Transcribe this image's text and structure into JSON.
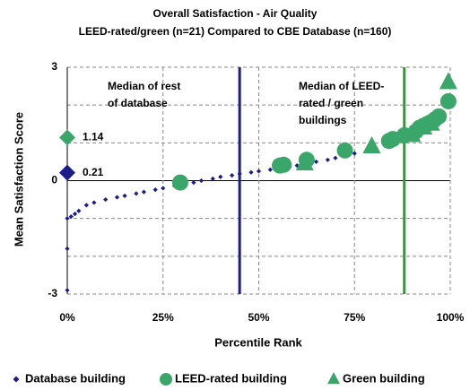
{
  "chart_data": {
    "type": "scatter",
    "title": [
      "Overall Satisfaction - Air Quality",
      "LEED-rated/green (n=21) Compared to CBE Database (n=160)"
    ],
    "x_label": "Percentile Rank",
    "y_label": "Mean Satisfaction Score",
    "xlim": [
      0,
      100
    ],
    "ylim": [
      -3,
      3
    ],
    "xticks": [
      {
        "value": 0,
        "label": "0%"
      },
      {
        "value": 25,
        "label": "25%"
      },
      {
        "value": 50,
        "label": "50%"
      },
      {
        "value": 75,
        "label": "75%"
      },
      {
        "value": 100,
        "label": "100%"
      }
    ],
    "yticks": [
      -3,
      0,
      3
    ],
    "y_minor_grid": [
      -2,
      -1,
      1,
      2
    ],
    "grid": true,
    "legend": "bottom",
    "series": [
      {
        "name": "Database building",
        "color": "#1c1c8a",
        "marker": "diamond",
        "x": [
          0,
          0,
          0,
          1,
          2,
          3,
          5,
          7,
          10,
          13,
          15,
          18,
          20,
          23,
          25,
          28,
          30,
          33,
          35,
          38,
          40,
          43,
          45,
          48,
          50,
          53,
          55,
          58,
          60,
          63,
          65,
          68,
          70,
          73,
          75,
          78,
          80,
          83,
          85,
          88,
          90,
          92,
          94,
          95,
          97,
          99
        ],
        "values": [
          -2.9,
          -1.8,
          -1.0,
          -0.95,
          -0.88,
          -0.8,
          -0.65,
          -0.58,
          -0.5,
          -0.44,
          -0.4,
          -0.34,
          -0.3,
          -0.24,
          -0.2,
          -0.14,
          -0.1,
          -0.05,
          0.0,
          0.05,
          0.1,
          0.14,
          0.18,
          0.22,
          0.25,
          0.29,
          0.32,
          0.36,
          0.4,
          0.45,
          0.5,
          0.55,
          0.6,
          0.66,
          0.72,
          0.78,
          0.85,
          0.92,
          1.0,
          1.1,
          1.2,
          1.3,
          1.42,
          1.5,
          1.7,
          2.0
        ]
      },
      {
        "name": "LEED-rated building",
        "color": "#3aa66a",
        "marker": "circle",
        "x": [
          29.5,
          55.5,
          56.5,
          62.5,
          72.5,
          84,
          85,
          88,
          91,
          92,
          93,
          94,
          95,
          96,
          97,
          99.5
        ],
        "values": [
          -0.05,
          0.4,
          0.42,
          0.55,
          0.8,
          1.05,
          1.1,
          1.2,
          1.3,
          1.4,
          1.45,
          1.5,
          1.55,
          1.62,
          1.7,
          2.1
        ]
      },
      {
        "name": "Green building",
        "color": "#3aa66a",
        "marker": "triangle",
        "x": [
          62,
          79.5,
          90,
          93,
          95,
          99.5
        ],
        "values": [
          0.45,
          0.9,
          1.2,
          1.4,
          1.5,
          2.6
        ]
      }
    ],
    "median_lines": [
      {
        "x": 45,
        "color": "#1c1c8a",
        "label": [
          "Median of rest",
          "of database"
        ]
      },
      {
        "x": 88,
        "color": "#2c9c2c",
        "label": [
          "Median of LEED-",
          "rated / green",
          "buildings"
        ]
      }
    ],
    "median_values": [
      {
        "value": 1.14,
        "color": "#3aa66a"
      },
      {
        "value": 0.21,
        "color": "#1c1c8a"
      }
    ]
  }
}
